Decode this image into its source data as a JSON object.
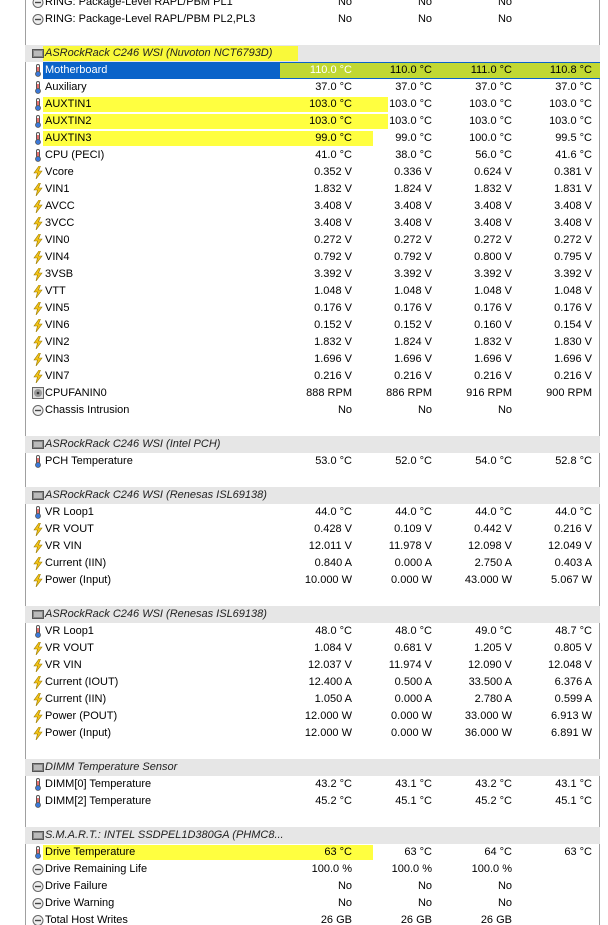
{
  "top_rows": [
    {
      "label": "RING: Package-Level RAPL/PBM PL1",
      "icon": "status",
      "values": [
        "No",
        "No",
        "No",
        null
      ]
    },
    {
      "label": "RING: Package-Level RAPL/PBM PL2,PL3",
      "icon": "status",
      "values": [
        "No",
        "No",
        "No",
        null
      ]
    }
  ],
  "sections": [
    {
      "title": "ASRockRack C246 WSI (Nuvoton NCT6793D)",
      "highlight": true,
      "rows": [
        {
          "label": "Motherboard",
          "icon": "temp",
          "selected": true,
          "highlight": true,
          "values": [
            "110.0 °C",
            "110.0 °C",
            "111.0 °C",
            "110.8 °C"
          ]
        },
        {
          "label": "Auxiliary",
          "icon": "temp",
          "values": [
            "37.0 °C",
            "37.0 °C",
            "37.0 °C",
            "37.0 °C"
          ]
        },
        {
          "label": "AUXTIN1",
          "icon": "temp",
          "highlight": true,
          "values": [
            "103.0 °C",
            "103.0 °C",
            "103.0 °C",
            "103.0 °C"
          ]
        },
        {
          "label": "AUXTIN2",
          "icon": "temp",
          "highlight": true,
          "values": [
            "103.0 °C",
            "103.0 °C",
            "103.0 °C",
            "103.0 °C"
          ]
        },
        {
          "label": "AUXTIN3",
          "icon": "temp",
          "highlight": true,
          "values": [
            "99.0 °C",
            "99.0 °C",
            "100.0 °C",
            "99.5 °C"
          ]
        },
        {
          "label": "CPU (PECI)",
          "icon": "temp",
          "values": [
            "41.0 °C",
            "38.0 °C",
            "56.0 °C",
            "41.6 °C"
          ]
        },
        {
          "label": "Vcore",
          "icon": "power",
          "values": [
            "0.352 V",
            "0.336 V",
            "0.624 V",
            "0.381 V"
          ]
        },
        {
          "label": "VIN1",
          "icon": "power",
          "values": [
            "1.832 V",
            "1.824 V",
            "1.832 V",
            "1.831 V"
          ]
        },
        {
          "label": "AVCC",
          "icon": "power",
          "values": [
            "3.408 V",
            "3.408 V",
            "3.408 V",
            "3.408 V"
          ]
        },
        {
          "label": "3VCC",
          "icon": "power",
          "values": [
            "3.408 V",
            "3.408 V",
            "3.408 V",
            "3.408 V"
          ]
        },
        {
          "label": "VIN0",
          "icon": "power",
          "values": [
            "0.272 V",
            "0.272 V",
            "0.272 V",
            "0.272 V"
          ]
        },
        {
          "label": "VIN4",
          "icon": "power",
          "values": [
            "0.792 V",
            "0.792 V",
            "0.800 V",
            "0.795 V"
          ]
        },
        {
          "label": "3VSB",
          "icon": "power",
          "values": [
            "3.392 V",
            "3.392 V",
            "3.392 V",
            "3.392 V"
          ]
        },
        {
          "label": "VTT",
          "icon": "power",
          "values": [
            "1.048 V",
            "1.048 V",
            "1.048 V",
            "1.048 V"
          ]
        },
        {
          "label": "VIN5",
          "icon": "power",
          "values": [
            "0.176 V",
            "0.176 V",
            "0.176 V",
            "0.176 V"
          ]
        },
        {
          "label": "VIN6",
          "icon": "power",
          "values": [
            "0.152 V",
            "0.152 V",
            "0.160 V",
            "0.154 V"
          ]
        },
        {
          "label": "VIN2",
          "icon": "power",
          "values": [
            "1.832 V",
            "1.824 V",
            "1.832 V",
            "1.830 V"
          ]
        },
        {
          "label": "VIN3",
          "icon": "power",
          "values": [
            "1.696 V",
            "1.696 V",
            "1.696 V",
            "1.696 V"
          ]
        },
        {
          "label": "VIN7",
          "icon": "power",
          "values": [
            "0.216 V",
            "0.216 V",
            "0.216 V",
            "0.216 V"
          ]
        },
        {
          "label": "CPUFANIN0",
          "icon": "fan",
          "values": [
            "888 RPM",
            "886 RPM",
            "916 RPM",
            "900 RPM"
          ]
        },
        {
          "label": "Chassis Intrusion",
          "icon": "status",
          "values": [
            "No",
            "No",
            "No",
            null
          ]
        }
      ]
    },
    {
      "title": "ASRockRack C246 WSI (Intel PCH)",
      "rows": [
        {
          "label": "PCH Temperature",
          "icon": "temp",
          "values": [
            "53.0 °C",
            "52.0 °C",
            "54.0 °C",
            "52.8 °C"
          ]
        }
      ]
    },
    {
      "title": "ASRockRack C246 WSI (Renesas ISL69138)",
      "rows": [
        {
          "label": "VR Loop1",
          "icon": "temp",
          "values": [
            "44.0 °C",
            "44.0 °C",
            "44.0 °C",
            "44.0 °C"
          ]
        },
        {
          "label": "VR VOUT",
          "icon": "power",
          "values": [
            "0.428 V",
            "0.109 V",
            "0.442 V",
            "0.216 V"
          ]
        },
        {
          "label": "VR VIN",
          "icon": "power",
          "values": [
            "12.011 V",
            "11.978 V",
            "12.098 V",
            "12.049 V"
          ]
        },
        {
          "label": "Current (IIN)",
          "icon": "power",
          "values": [
            "0.840 A",
            "0.000 A",
            "2.750 A",
            "0.403 A"
          ]
        },
        {
          "label": "Power (Input)",
          "icon": "power",
          "values": [
            "10.000 W",
            "0.000 W",
            "43.000 W",
            "5.067 W"
          ]
        }
      ]
    },
    {
      "title": "ASRockRack C246 WSI (Renesas ISL69138)",
      "rows": [
        {
          "label": "VR Loop1",
          "icon": "temp",
          "values": [
            "48.0 °C",
            "48.0 °C",
            "49.0 °C",
            "48.7 °C"
          ]
        },
        {
          "label": "VR VOUT",
          "icon": "power",
          "values": [
            "1.084 V",
            "0.681 V",
            "1.205 V",
            "0.805 V"
          ]
        },
        {
          "label": "VR VIN",
          "icon": "power",
          "values": [
            "12.037 V",
            "11.974 V",
            "12.090 V",
            "12.048 V"
          ]
        },
        {
          "label": "Current (IOUT)",
          "icon": "power",
          "values": [
            "12.400 A",
            "0.500 A",
            "33.500 A",
            "6.376 A"
          ]
        },
        {
          "label": "Current (IIN)",
          "icon": "power",
          "values": [
            "1.050 A",
            "0.000 A",
            "2.780 A",
            "0.599 A"
          ]
        },
        {
          "label": "Power (POUT)",
          "icon": "power",
          "values": [
            "12.000 W",
            "0.000 W",
            "33.000 W",
            "6.913 W"
          ]
        },
        {
          "label": "Power (Input)",
          "icon": "power",
          "values": [
            "12.000 W",
            "0.000 W",
            "36.000 W",
            "6.891 W"
          ]
        }
      ]
    },
    {
      "title": "DIMM Temperature Sensor",
      "rows": [
        {
          "label": "DIMM[0] Temperature",
          "icon": "temp",
          "values": [
            "43.2 °C",
            "43.1 °C",
            "43.2 °C",
            "43.1 °C"
          ]
        },
        {
          "label": "DIMM[2] Temperature",
          "icon": "temp",
          "values": [
            "45.2 °C",
            "45.1 °C",
            "45.2 °C",
            "45.1 °C"
          ]
        }
      ]
    },
    {
      "title": "S.M.A.R.T.: INTEL SSDPEL1D380GA (PHMC8...",
      "rows": [
        {
          "label": "Drive Temperature",
          "icon": "temp",
          "highlight": true,
          "values": [
            "63 °C",
            "63 °C",
            "64 °C",
            "63 °C"
          ]
        },
        {
          "label": "Drive Remaining Life",
          "icon": "status",
          "values": [
            "100.0 %",
            "100.0 %",
            "100.0 %",
            null
          ]
        },
        {
          "label": "Drive Failure",
          "icon": "status",
          "values": [
            "No",
            "No",
            "No",
            null
          ]
        },
        {
          "label": "Drive Warning",
          "icon": "status",
          "values": [
            "No",
            "No",
            "No",
            null
          ]
        },
        {
          "label": "Total Host Writes",
          "icon": "status",
          "values": [
            "26 GB",
            "26 GB",
            "26 GB",
            null
          ]
        }
      ]
    }
  ]
}
